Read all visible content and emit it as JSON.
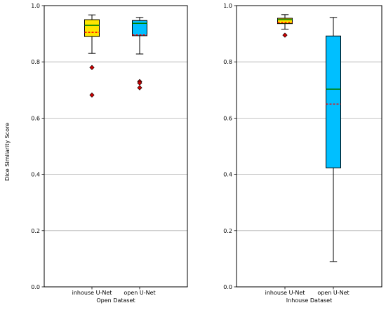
{
  "chart_data": [
    {
      "type": "box",
      "xlabel": "Open Dataset",
      "ylabel": "Dice Similarity Score",
      "ylim": [
        0,
        1
      ],
      "yticks": [
        "0.0",
        "0.2",
        "0.4",
        "0.6",
        "0.8",
        "1.0"
      ],
      "grid": "horizontal",
      "categories": [
        "inhouse U-Net",
        "open U-Net"
      ],
      "boxes": [
        {
          "label": "inhouse U-Net",
          "fill": "#ffe600",
          "whisker_low": 0.83,
          "q1": 0.89,
          "median": 0.93,
          "mean": 0.905,
          "q3": 0.95,
          "whisker_high": 0.967,
          "outliers": [
            0.78,
            0.682
          ]
        },
        {
          "label": "open U-Net",
          "fill": "#00bfff",
          "whisker_low": 0.828,
          "q1": 0.893,
          "median": 0.937,
          "mean": 0.896,
          "q3": 0.947,
          "whisker_high": 0.958,
          "outliers": [
            0.73,
            0.725,
            0.708
          ]
        }
      ]
    },
    {
      "type": "box",
      "xlabel": "Inhouse Dataset",
      "ylabel": "",
      "ylim": [
        0,
        1
      ],
      "yticks": [
        "0.0",
        "0.2",
        "0.4",
        "0.6",
        "0.8",
        "1.0"
      ],
      "grid": "horizontal",
      "categories": [
        "inhouse U-Net",
        "open U-Net"
      ],
      "boxes": [
        {
          "label": "inhouse U-Net",
          "fill": "#ffe600",
          "whisker_low": 0.916,
          "q1": 0.936,
          "median": 0.95,
          "mean": 0.94,
          "q3": 0.955,
          "whisker_high": 0.968,
          "outliers": [
            0.895
          ]
        },
        {
          "label": "open U-Net",
          "fill": "#00bfff",
          "whisker_low": 0.09,
          "q1": 0.423,
          "median": 0.703,
          "mean": 0.65,
          "q3": 0.892,
          "whisker_high": 0.958,
          "outliers": []
        }
      ]
    }
  ],
  "colors": {
    "median": "#008000",
    "mean": "#ff0000",
    "outlier": "#cc0000",
    "grid": "#b0b0b0"
  }
}
